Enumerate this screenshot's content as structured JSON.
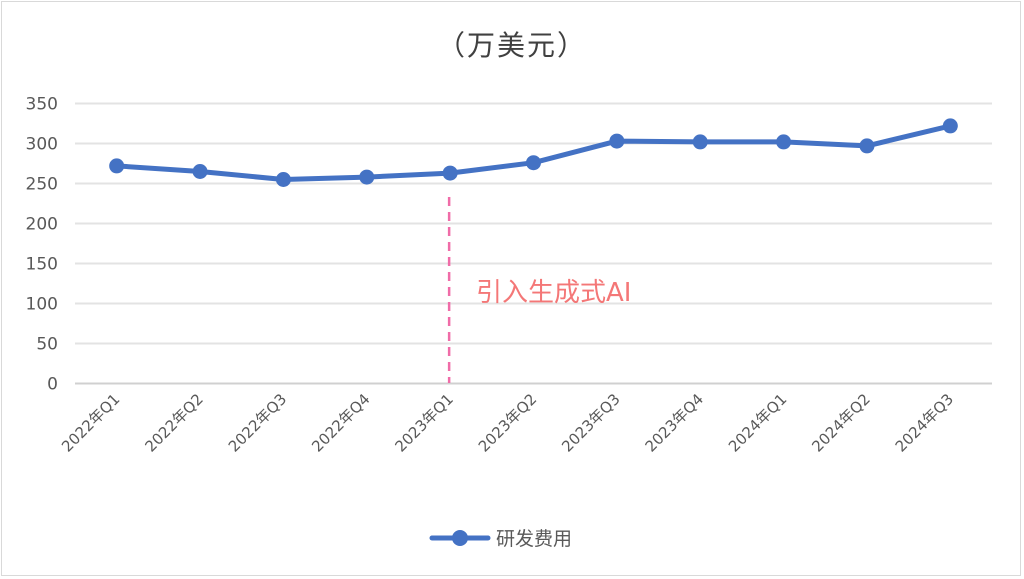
{
  "chart_data": {
    "type": "line",
    "title": "（万美元）",
    "xlabel": "",
    "ylabel": "",
    "categories": [
      "2022年Q1",
      "2022年Q2",
      "2022年Q3",
      "2022年Q4",
      "2023年Q1",
      "2023年Q2",
      "2023年Q3",
      "2023年Q4",
      "2024年Q1",
      "2024年Q2",
      "2024年Q3"
    ],
    "series": [
      {
        "name": "研发费用",
        "color": "#4472c4",
        "values": [
          272,
          265,
          255,
          258,
          263,
          276,
          303,
          302,
          302,
          297,
          322
        ]
      }
    ],
    "ylim": [
      0,
      350
    ],
    "yticks": [
      0,
      50,
      100,
      150,
      200,
      250,
      300,
      350
    ],
    "grid": true,
    "legend_position": "bottom",
    "annotations": [
      {
        "type": "vline",
        "at_category": "2023年Q1",
        "style": "dashed",
        "color": "#f06ca8"
      },
      {
        "type": "text",
        "text": "引入生成式AI",
        "color": "#f47777",
        "near_category": "2023年Q1",
        "y_approx": 110
      }
    ]
  },
  "title": "（万美元）",
  "legend": {
    "label": "研发费用"
  },
  "annotation": {
    "text": "引入生成式AI"
  }
}
